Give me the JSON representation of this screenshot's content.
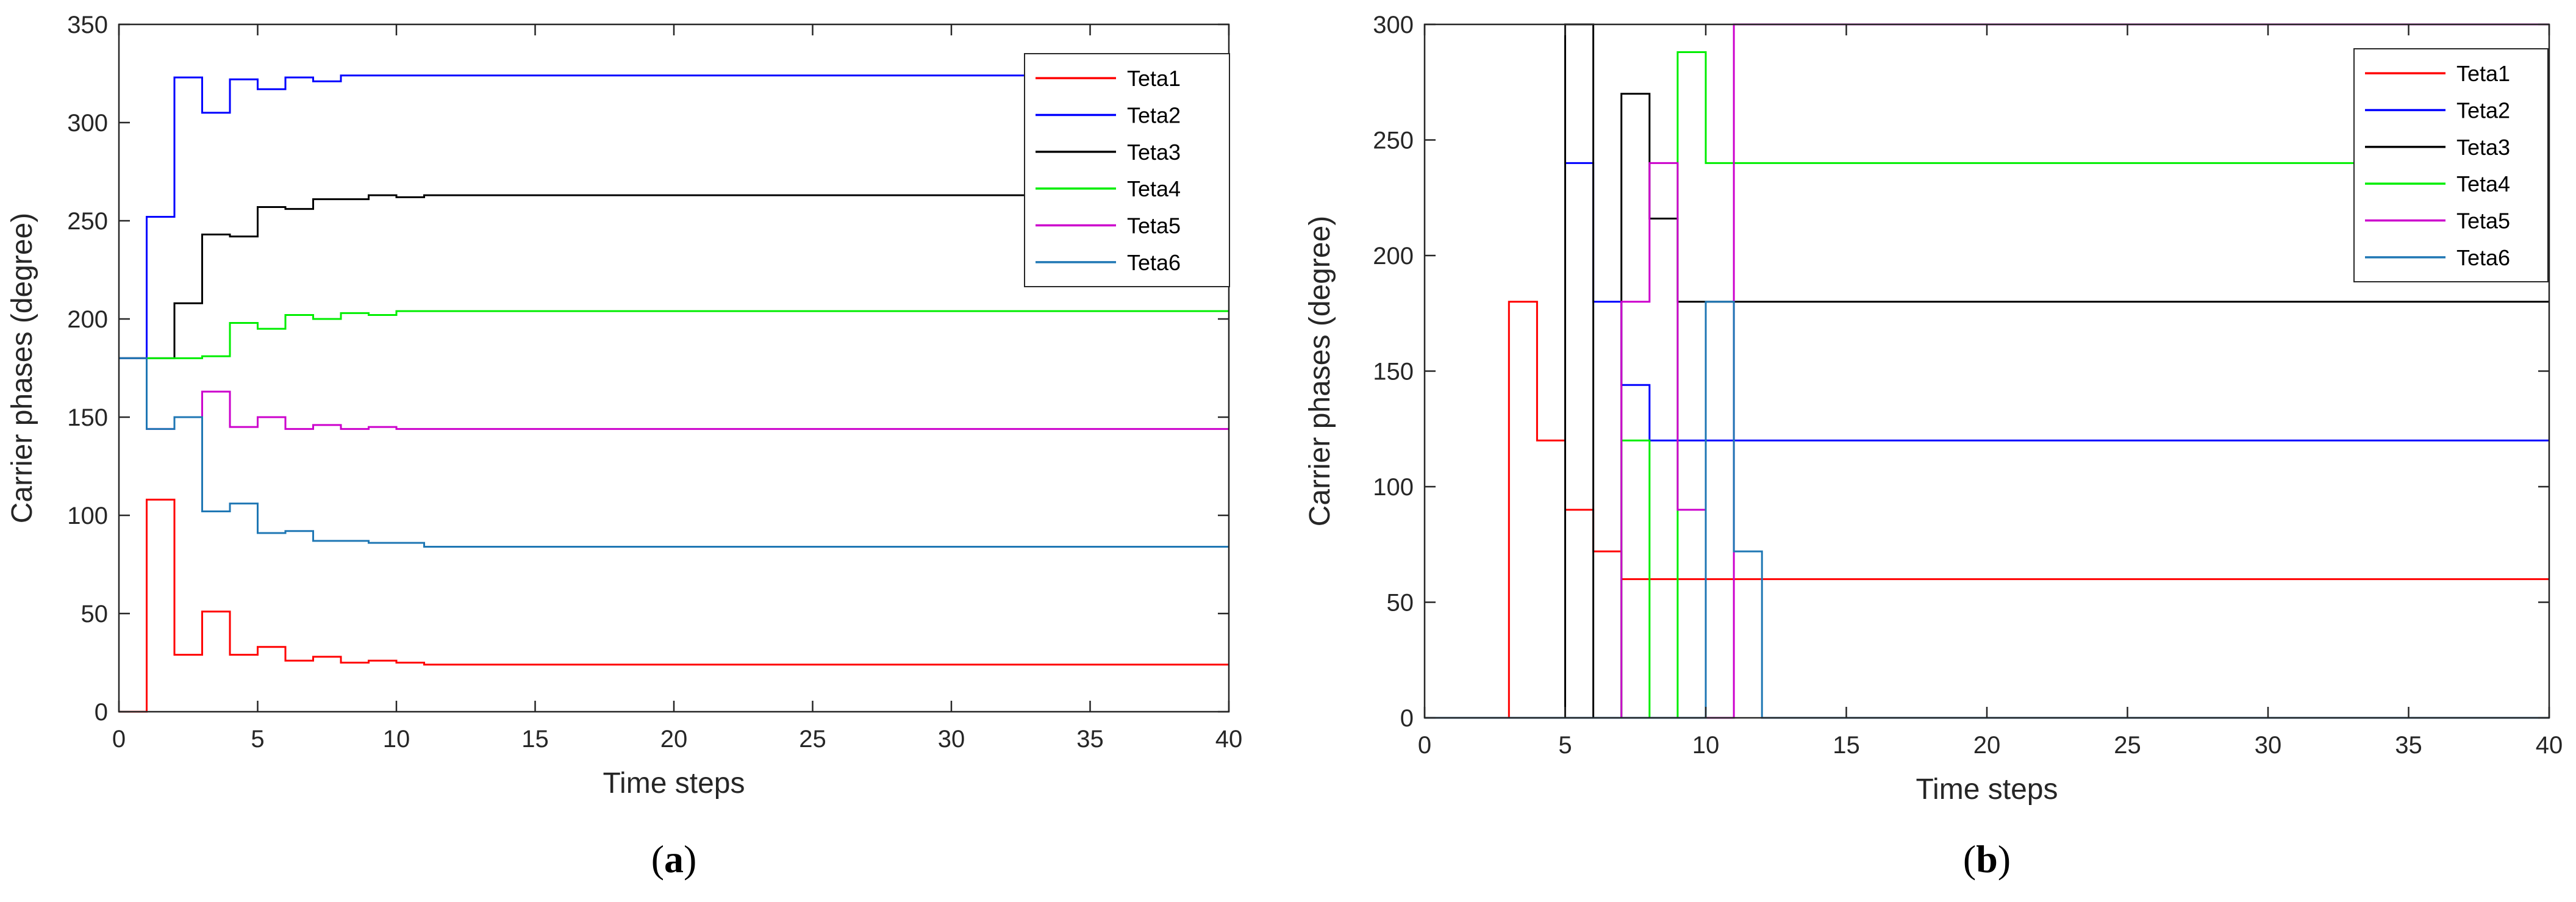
{
  "chart_data": [
    {
      "type": "line",
      "step": true,
      "panel_label": {
        "open": "(",
        "letter": "a",
        "close": ")"
      },
      "xlabel": "Time steps",
      "ylabel": "Carrier phases (degree)",
      "xlim": [
        0,
        40
      ],
      "ylim": [
        0,
        350
      ],
      "xticks": [
        0,
        5,
        10,
        15,
        20,
        25,
        30,
        35,
        40
      ],
      "yticks": [
        0,
        50,
        100,
        150,
        200,
        250,
        300,
        350
      ],
      "legend_position": "top-right",
      "series": [
        {
          "name": "Teta1",
          "color": "#ff0000",
          "points": [
            [
              0,
              0
            ],
            [
              1,
              0
            ],
            [
              1,
              108
            ],
            [
              2,
              108
            ],
            [
              2,
              29
            ],
            [
              3,
              29
            ],
            [
              3,
              51
            ],
            [
              4,
              51
            ],
            [
              4,
              29
            ],
            [
              5,
              29
            ],
            [
              5,
              33
            ],
            [
              6,
              33
            ],
            [
              6,
              26
            ],
            [
              7,
              26
            ],
            [
              7,
              28
            ],
            [
              8,
              28
            ],
            [
              8,
              25
            ],
            [
              9,
              25
            ],
            [
              9,
              26
            ],
            [
              10,
              26
            ],
            [
              10,
              25
            ],
            [
              11,
              25
            ],
            [
              11,
              24
            ],
            [
              40,
              24
            ]
          ]
        },
        {
          "name": "Teta2",
          "color": "#0000ff",
          "points": [
            [
              0,
              180
            ],
            [
              1,
              180
            ],
            [
              1,
              252
            ],
            [
              2,
              252
            ],
            [
              2,
              323
            ],
            [
              3,
              323
            ],
            [
              3,
              305
            ],
            [
              4,
              305
            ],
            [
              4,
              322
            ],
            [
              5,
              322
            ],
            [
              5,
              317
            ],
            [
              6,
              317
            ],
            [
              6,
              323
            ],
            [
              7,
              323
            ],
            [
              7,
              321
            ],
            [
              8,
              321
            ],
            [
              8,
              324
            ],
            [
              40,
              324
            ]
          ]
        },
        {
          "name": "Teta3",
          "color": "#000000",
          "points": [
            [
              0,
              180
            ],
            [
              1,
              180
            ],
            [
              1,
              180
            ],
            [
              2,
              180
            ],
            [
              2,
              208
            ],
            [
              3,
              208
            ],
            [
              3,
              243
            ],
            [
              4,
              243
            ],
            [
              4,
              242
            ],
            [
              5,
              242
            ],
            [
              5,
              257
            ],
            [
              6,
              257
            ],
            [
              6,
              256
            ],
            [
              7,
              256
            ],
            [
              7,
              261
            ],
            [
              8,
              261
            ],
            [
              8,
              261
            ],
            [
              9,
              261
            ],
            [
              9,
              263
            ],
            [
              10,
              263
            ],
            [
              10,
              262
            ],
            [
              11,
              262
            ],
            [
              11,
              263
            ],
            [
              40,
              263
            ]
          ]
        },
        {
          "name": "Teta4",
          "color": "#00ee00",
          "points": [
            [
              0,
              180
            ],
            [
              1,
              180
            ],
            [
              1,
              180
            ],
            [
              2,
              180
            ],
            [
              2,
              180
            ],
            [
              3,
              180
            ],
            [
              3,
              181
            ],
            [
              4,
              181
            ],
            [
              4,
              198
            ],
            [
              5,
              198
            ],
            [
              5,
              195
            ],
            [
              6,
              195
            ],
            [
              6,
              202
            ],
            [
              7,
              202
            ],
            [
              7,
              200
            ],
            [
              8,
              200
            ],
            [
              8,
              203
            ],
            [
              9,
              203
            ],
            [
              9,
              202
            ],
            [
              10,
              202
            ],
            [
              10,
              204
            ],
            [
              40,
              204
            ]
          ]
        },
        {
          "name": "Teta5",
          "color": "#cc00cc",
          "points": [
            [
              0,
              180
            ],
            [
              1,
              180
            ],
            [
              1,
              144
            ],
            [
              2,
              144
            ],
            [
              2,
              150
            ],
            [
              3,
              150
            ],
            [
              3,
              163
            ],
            [
              4,
              163
            ],
            [
              4,
              145
            ],
            [
              5,
              145
            ],
            [
              5,
              150
            ],
            [
              6,
              150
            ],
            [
              6,
              144
            ],
            [
              7,
              144
            ],
            [
              7,
              146
            ],
            [
              8,
              146
            ],
            [
              8,
              144
            ],
            [
              9,
              144
            ],
            [
              9,
              145
            ],
            [
              10,
              145
            ],
            [
              10,
              144
            ],
            [
              40,
              144
            ]
          ]
        },
        {
          "name": "Teta6",
          "color": "#1f77b4",
          "points": [
            [
              0,
              180
            ],
            [
              1,
              180
            ],
            [
              1,
              144
            ],
            [
              2,
              144
            ],
            [
              2,
              150
            ],
            [
              3,
              150
            ],
            [
              3,
              102
            ],
            [
              4,
              102
            ],
            [
              4,
              106
            ],
            [
              5,
              106
            ],
            [
              5,
              91
            ],
            [
              6,
              91
            ],
            [
              6,
              92
            ],
            [
              7,
              92
            ],
            [
              7,
              87
            ],
            [
              8,
              87
            ],
            [
              8,
              87
            ],
            [
              9,
              87
            ],
            [
              9,
              86
            ],
            [
              10,
              86
            ],
            [
              10,
              86
            ],
            [
              11,
              86
            ],
            [
              11,
              84
            ],
            [
              40,
              84
            ]
          ]
        }
      ]
    },
    {
      "type": "line",
      "step": true,
      "panel_label": {
        "open": "(",
        "letter": "b",
        "close": ")"
      },
      "xlabel": "Time steps",
      "ylabel": "Carrier phases (degree)",
      "xlim": [
        0,
        40
      ],
      "ylim": [
        0,
        300
      ],
      "xticks": [
        0,
        5,
        10,
        15,
        20,
        25,
        30,
        35,
        40
      ],
      "yticks": [
        0,
        50,
        100,
        150,
        200,
        250,
        300
      ],
      "legend_position": "top-right",
      "series": [
        {
          "name": "Teta1",
          "color": "#ff0000",
          "points": [
            [
              0,
              0
            ],
            [
              3,
              0
            ],
            [
              3,
              180
            ],
            [
              4,
              180
            ],
            [
              4,
              120
            ],
            [
              5,
              120
            ],
            [
              5,
              90
            ],
            [
              6,
              90
            ],
            [
              6,
              72
            ],
            [
              7,
              72
            ],
            [
              7,
              60
            ],
            [
              40,
              60
            ]
          ]
        },
        {
          "name": "Teta2",
          "color": "#0000ff",
          "points": [
            [
              0,
              0
            ],
            [
              5,
              0
            ],
            [
              5,
              240
            ],
            [
              6,
              240
            ],
            [
              6,
              180
            ],
            [
              7,
              180
            ],
            [
              7,
              144
            ],
            [
              8,
              144
            ],
            [
              8,
              120
            ],
            [
              40,
              120
            ]
          ]
        },
        {
          "name": "Teta3",
          "color": "#000000",
          "points": [
            [
              0,
              0
            ],
            [
              5,
              0
            ],
            [
              5,
              300
            ],
            [
              6,
              300
            ],
            [
              6,
              0
            ],
            [
              7,
              0
            ],
            [
              7,
              270
            ],
            [
              8,
              270
            ],
            [
              8,
              216
            ],
            [
              9,
              216
            ],
            [
              9,
              180
            ],
            [
              40,
              180
            ]
          ]
        },
        {
          "name": "Teta4",
          "color": "#00ee00",
          "points": [
            [
              0,
              0
            ],
            [
              7,
              0
            ],
            [
              7,
              120
            ],
            [
              8,
              120
            ],
            [
              8,
              0
            ],
            [
              9,
              0
            ],
            [
              9,
              288
            ],
            [
              10,
              288
            ],
            [
              10,
              240
            ],
            [
              40,
              240
            ]
          ]
        },
        {
          "name": "Teta5",
          "color": "#cc00cc",
          "points": [
            [
              0,
              0
            ],
            [
              7,
              0
            ],
            [
              7,
              180
            ],
            [
              8,
              180
            ],
            [
              8,
              240
            ],
            [
              9,
              240
            ],
            [
              9,
              90
            ],
            [
              10,
              90
            ],
            [
              10,
              0
            ],
            [
              11,
              0
            ],
            [
              11,
              300
            ],
            [
              40,
              300
            ]
          ]
        },
        {
          "name": "Teta6",
          "color": "#1f77b4",
          "points": [
            [
              0,
              0
            ],
            [
              10,
              0
            ],
            [
              10,
              180
            ],
            [
              11,
              180
            ],
            [
              11,
              72
            ],
            [
              12,
              72
            ],
            [
              12,
              0
            ],
            [
              40,
              0
            ]
          ]
        }
      ]
    }
  ]
}
